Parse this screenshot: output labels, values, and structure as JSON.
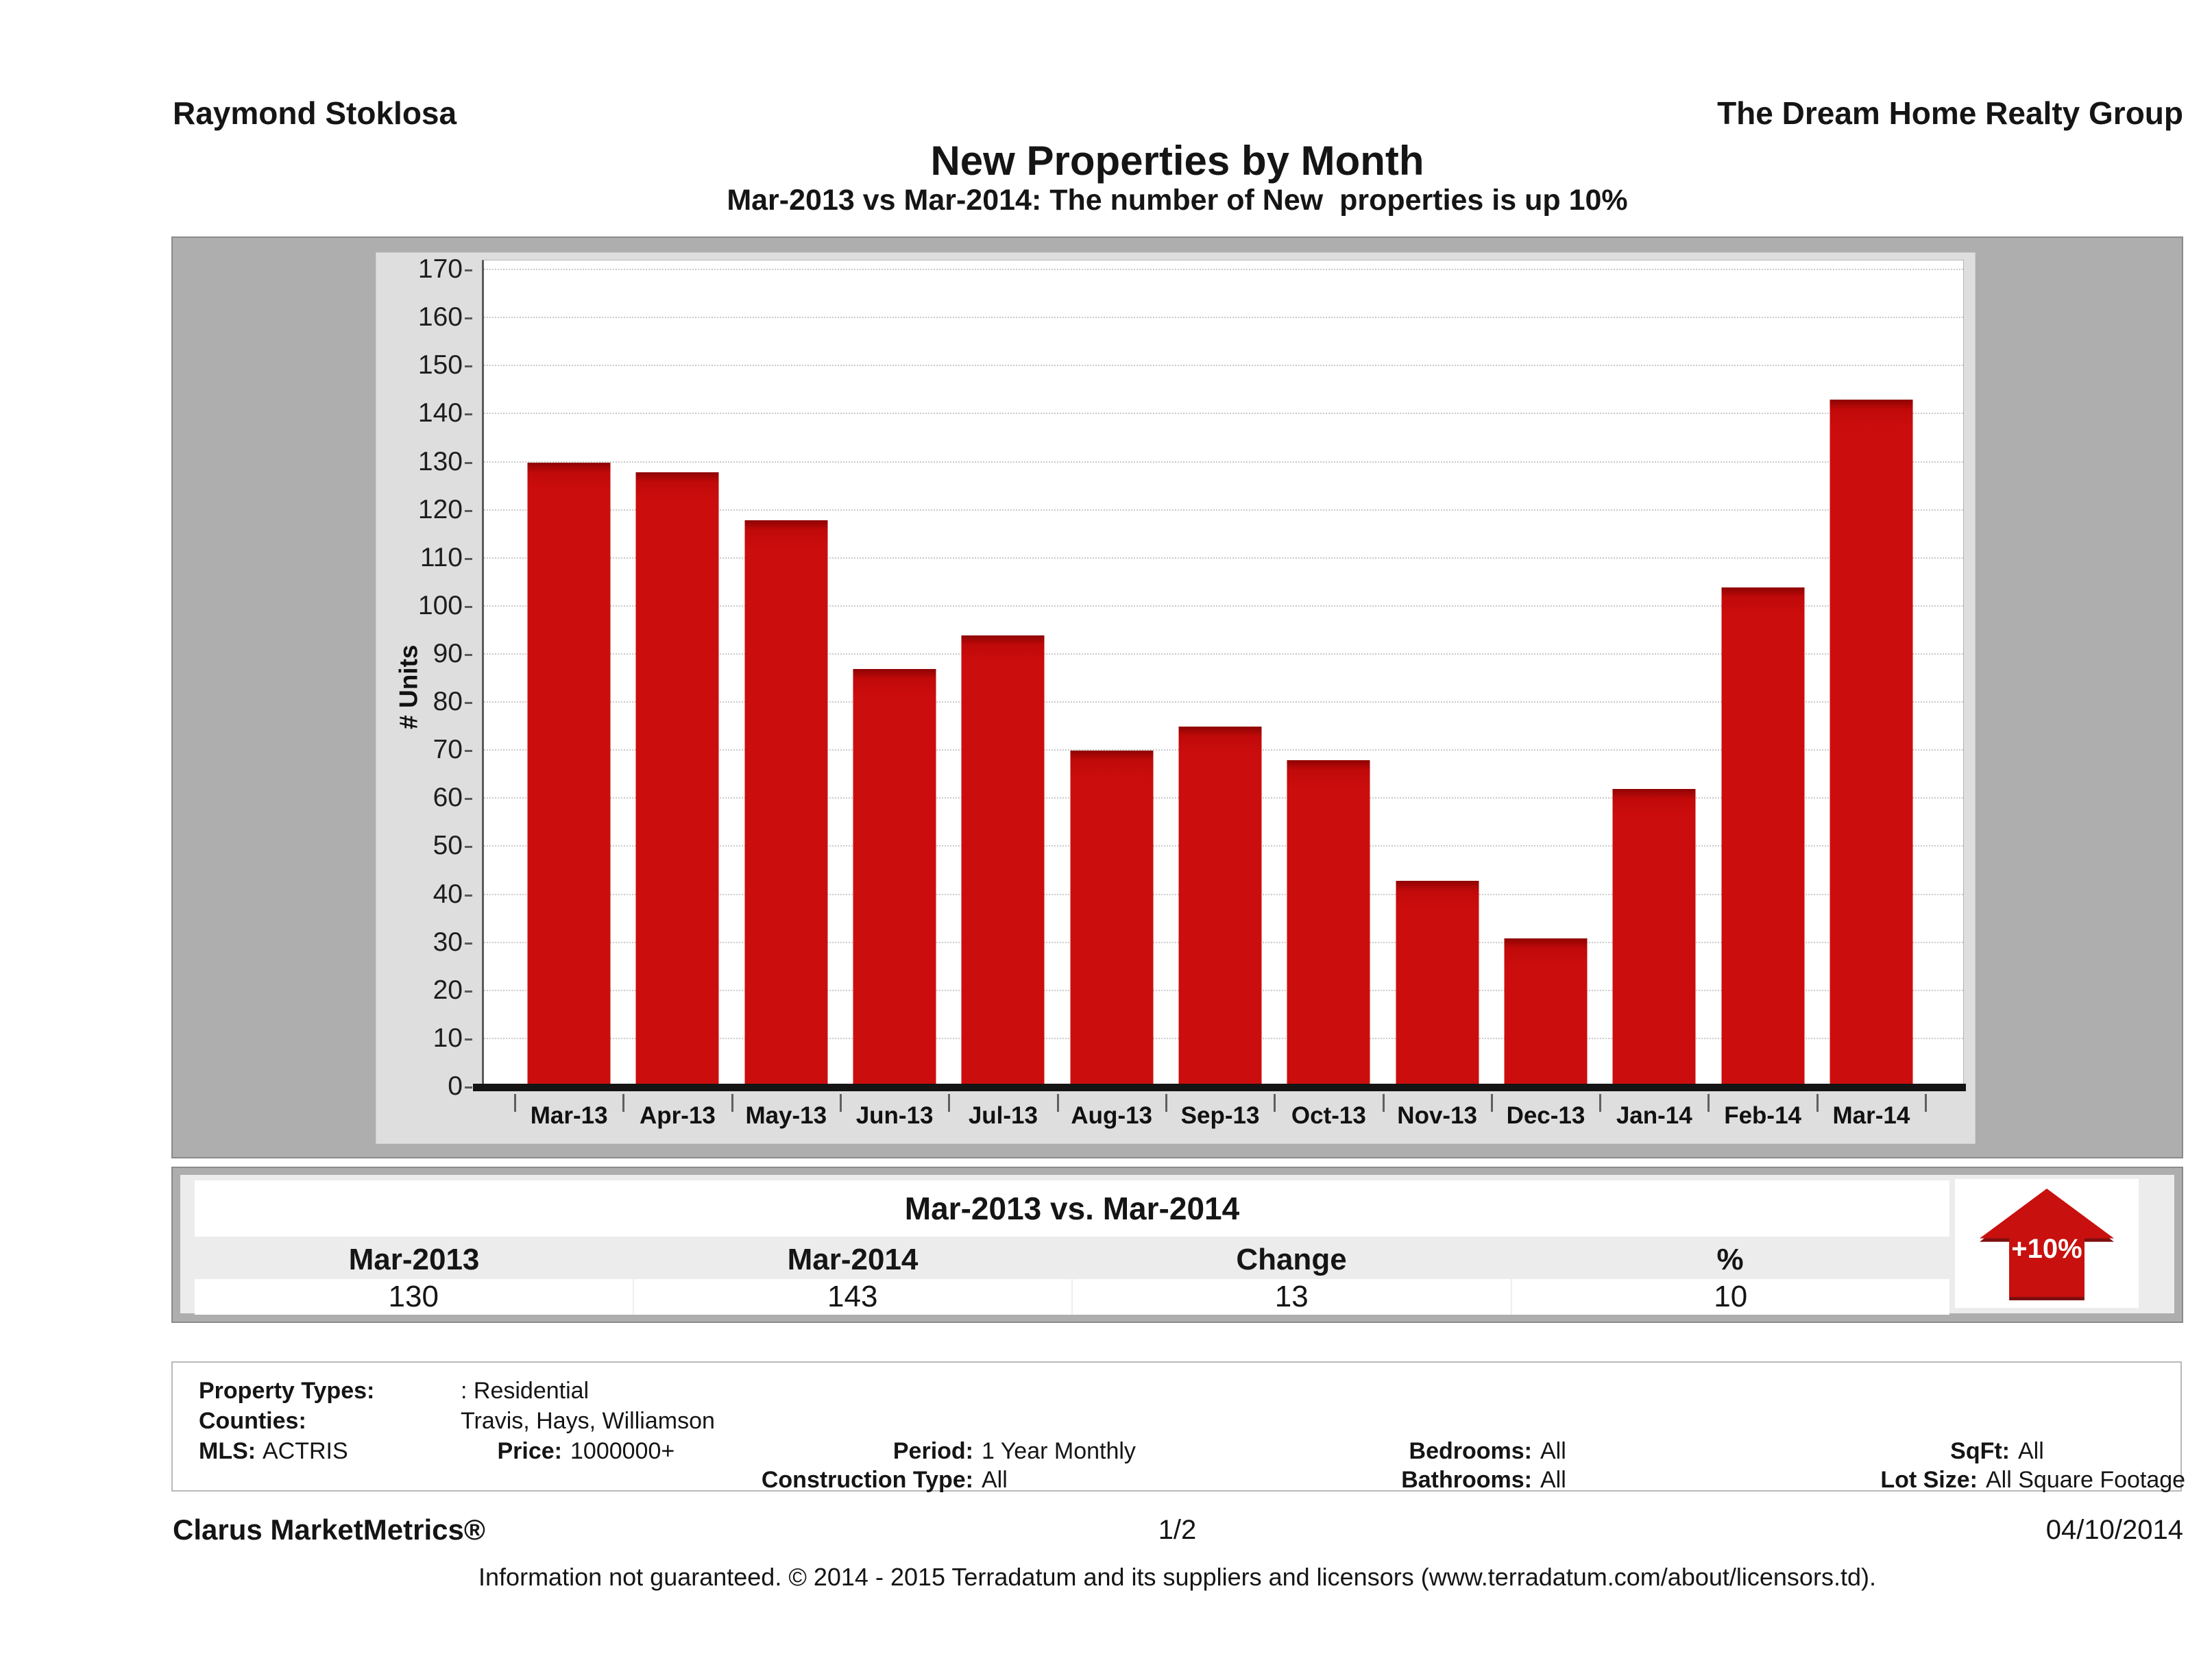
{
  "header": {
    "agent": "Raymond Stoklosa",
    "company": "The Dream Home Realty Group"
  },
  "title": "New Properties by Month",
  "subtitle": "Mar-2013 vs Mar-2014: The number of New  properties is up 10%",
  "chart_data": {
    "type": "bar",
    "title": "New Properties by Month",
    "xlabel": "",
    "ylabel": "# Units",
    "categories": [
      "Mar-13",
      "Apr-13",
      "May-13",
      "Jun-13",
      "Jul-13",
      "Aug-13",
      "Sep-13",
      "Oct-13",
      "Nov-13",
      "Dec-13",
      "Jan-14",
      "Feb-14",
      "Mar-14"
    ],
    "values": [
      130,
      128,
      118,
      87,
      94,
      70,
      75,
      68,
      43,
      31,
      62,
      104,
      143
    ],
    "ylim": [
      0,
      170
    ],
    "ytick_step": 10,
    "grid": "horizontal-dotted",
    "legend_position": "none",
    "bar_color": "#cc0d0d"
  },
  "summary_table": {
    "title": "Mar-2013 vs. Mar-2014",
    "columns": [
      "Mar-2013",
      "Mar-2014",
      "Change",
      "%"
    ],
    "values": [
      "130",
      "143",
      "13",
      "10"
    ],
    "badge": {
      "label": "+10%",
      "direction": "up",
      "color": "#c8100e"
    }
  },
  "details": {
    "property_types_label": "Property Types:",
    "property_types_value": ": Residential",
    "counties_label": "Counties:",
    "counties_value": "Travis, Hays, Williamson",
    "mls_label": "MLS:",
    "mls_value": "ACTRIS",
    "price_label": "Price:",
    "price_value": "1000000+",
    "period_label": "Period:",
    "period_value": "1 Year Monthly",
    "bedrooms_label": "Bedrooms:",
    "bedrooms_value": "All",
    "sqft_label": "SqFt:",
    "sqft_value": "All",
    "construction_label": "Construction Type:",
    "construction_value": "All",
    "bathrooms_label": "Bathrooms:",
    "bathrooms_value": "All",
    "lot_label": "Lot Size:",
    "lot_value": "All Square Footage"
  },
  "footer": {
    "brand": "Clarus MarketMetrics®",
    "page": "1/2",
    "date": "04/10/2014",
    "disclaimer": "Information not guaranteed. © 2014 - 2015 Terradatum and its suppliers and licensors (www.terradatum.com/about/licensors.td)."
  }
}
